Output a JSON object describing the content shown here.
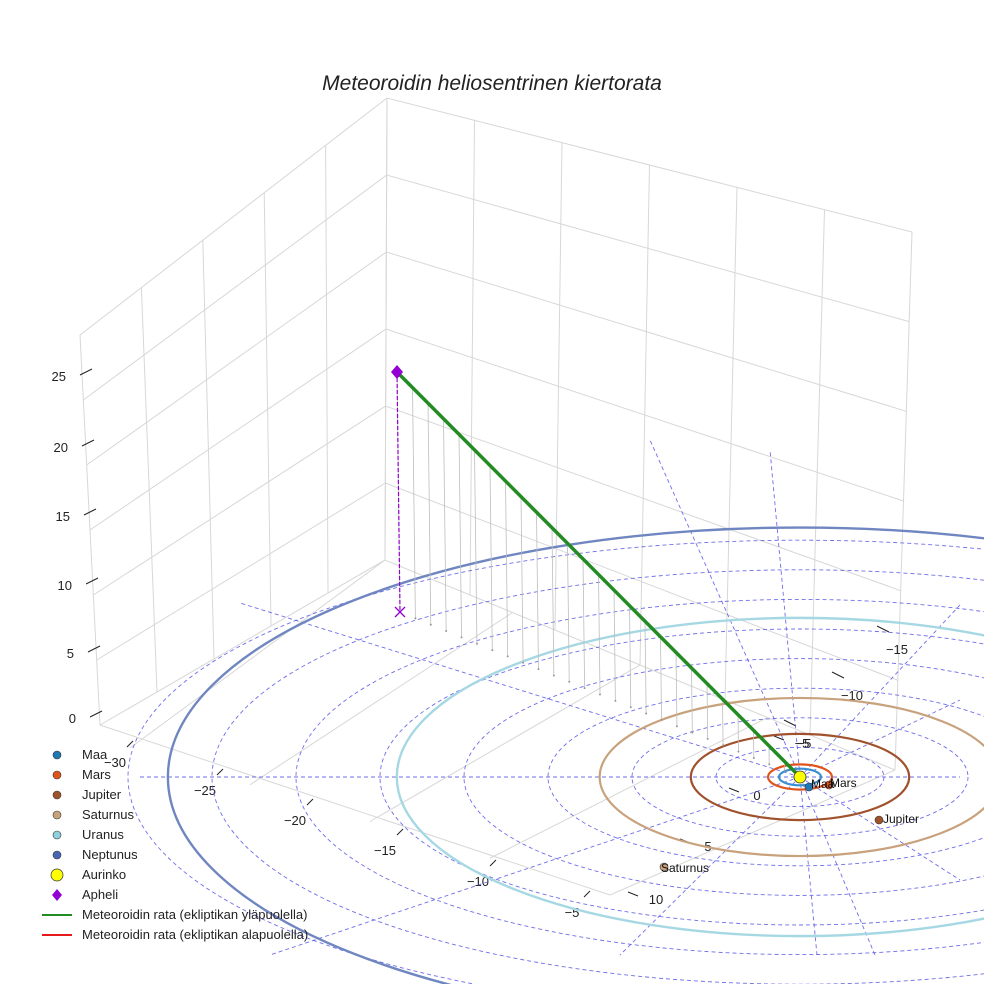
{
  "title": "Meteoroidin heliosentrinen kiertorata",
  "legend": {
    "items": [
      {
        "label": "Maa",
        "marker": "circle",
        "color": "#1f77b4"
      },
      {
        "label": "Mars",
        "marker": "circle",
        "color": "#e0541b"
      },
      {
        "label": "Jupiter",
        "marker": "circle",
        "color": "#a0522d"
      },
      {
        "label": "Saturnus",
        "marker": "circle",
        "color": "#c8a27c"
      },
      {
        "label": "Uranus",
        "marker": "circle",
        "color": "#8fd0dd"
      },
      {
        "label": "Neptunus",
        "marker": "circle",
        "color": "#4766b6"
      },
      {
        "label": "Aurinko",
        "marker": "circle-large",
        "color": "#ffff00"
      },
      {
        "label": "Apheli",
        "marker": "diamond",
        "color": "#9400d3"
      },
      {
        "label": "Meteoroidin rata (ekliptikan yläpuolella)",
        "marker": "line",
        "color": "#228b22"
      },
      {
        "label": "Meteoroidin rata (ekliptikan alapuolella)",
        "marker": "line",
        "color": "#e41a1c"
      }
    ]
  },
  "chart_data": {
    "type": "scatter3d",
    "title": "Meteoroidin heliosentrinen kiertorata",
    "axes": {
      "x_ticks": [
        -5,
        0,
        5,
        10
      ],
      "y_ticks": [
        -30,
        -25,
        -20,
        -15,
        -10,
        -5
      ],
      "z_ticks": [
        0,
        5,
        10,
        15,
        20,
        25
      ],
      "y2_ticks": [
        -15,
        -10,
        -5
      ]
    },
    "planets": [
      {
        "name": "Maa",
        "label": "Maa",
        "orbit_radius_au": 1.0,
        "color": "#3a8fd0"
      },
      {
        "name": "Mars",
        "label": "Mars",
        "orbit_radius_au": 1.52,
        "color": "#e0541b"
      },
      {
        "name": "Jupiter",
        "label": "Jupiter",
        "orbit_radius_au": 5.2,
        "color": "#a0522d"
      },
      {
        "name": "Saturnus",
        "label": "Saturnus",
        "orbit_radius_au": 9.54,
        "color": "#c8a27c"
      },
      {
        "name": "Uranus",
        "label": "",
        "orbit_radius_au": 19.2,
        "color": "#a6d8e3"
      },
      {
        "name": "Neptunus",
        "label": "",
        "orbit_radius_au": 30.1,
        "color": "#6f86c0"
      }
    ],
    "sun": {
      "name": "Aurinko",
      "x": 0,
      "y": 0,
      "z": 0
    },
    "aphelion": {
      "name": "Apheli",
      "z_au": 24.8
    },
    "trajectory": {
      "name": "Meteoroidin rata (ekliptikan yläpuolella)",
      "z_start_au": 0,
      "z_end_au": 24.8
    }
  }
}
